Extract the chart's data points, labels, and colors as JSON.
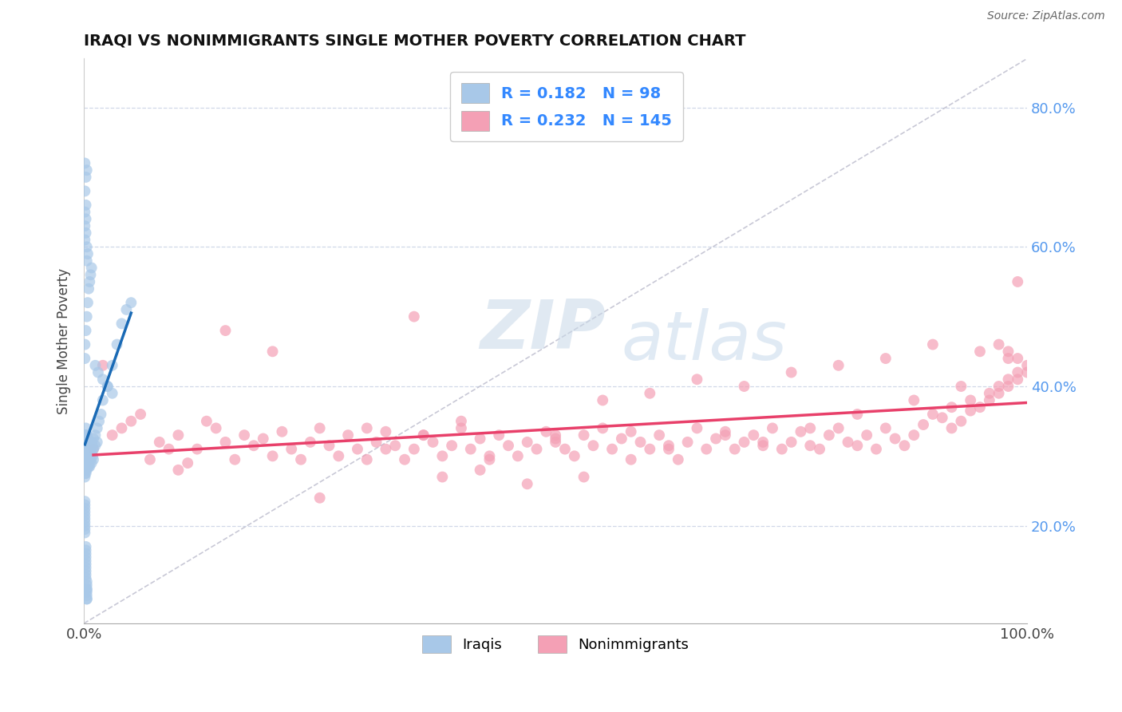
{
  "title": "IRAQI VS NONIMMIGRANTS SINGLE MOTHER POVERTY CORRELATION CHART",
  "source": "Source: ZipAtlas.com",
  "ylabel": "Single Mother Poverty",
  "r_iraqi": 0.182,
  "n_iraqi": 98,
  "r_nonimm": 0.232,
  "n_nonimm": 145,
  "color_iraqi": "#a8c8e8",
  "color_nonimm": "#f4a0b5",
  "color_iraqi_line": "#1a6ab5",
  "color_nonimm_line": "#e8406a",
  "background": "#ffffff",
  "grid_color": "#d0d8e8",
  "xlim": [
    0.0,
    1.0
  ],
  "ylim": [
    0.06,
    0.87
  ],
  "yticks": [
    0.2,
    0.4,
    0.6,
    0.8
  ],
  "ytick_labels": [
    "20.0%",
    "40.0%",
    "60.0%",
    "80.0%"
  ],
  "xticks": [
    0.0,
    1.0
  ],
  "xtick_labels": [
    "0.0%",
    "100.0%"
  ],
  "legend_labels": [
    "Iraqis",
    "Nonimmigrants"
  ],
  "iraqi_x": [
    0.001,
    0.001,
    0.001,
    0.001,
    0.001,
    0.001,
    0.001,
    0.001,
    0.001,
    0.001,
    0.002,
    0.002,
    0.002,
    0.002,
    0.002,
    0.002,
    0.002,
    0.002,
    0.002,
    0.002,
    0.003,
    0.003,
    0.003,
    0.003,
    0.003,
    0.003,
    0.003,
    0.003,
    0.004,
    0.004,
    0.004,
    0.004,
    0.004,
    0.004,
    0.005,
    0.005,
    0.005,
    0.005,
    0.005,
    0.006,
    0.006,
    0.006,
    0.006,
    0.007,
    0.007,
    0.007,
    0.008,
    0.008,
    0.008,
    0.009,
    0.009,
    0.01,
    0.01,
    0.01,
    0.012,
    0.012,
    0.014,
    0.014,
    0.016,
    0.018,
    0.02,
    0.025,
    0.03,
    0.035,
    0.04,
    0.045,
    0.05,
    0.001,
    0.001,
    0.001,
    0.002,
    0.002,
    0.003,
    0.003,
    0.004,
    0.001,
    0.001,
    0.002,
    0.002,
    0.003,
    0.001,
    0.001,
    0.002,
    0.003,
    0.004,
    0.005,
    0.006,
    0.007,
    0.008,
    0.012,
    0.015,
    0.02,
    0.025,
    0.03
  ],
  "iraqi_y": [
    0.285,
    0.3,
    0.31,
    0.32,
    0.295,
    0.275,
    0.33,
    0.27,
    0.315,
    0.305,
    0.29,
    0.31,
    0.33,
    0.32,
    0.3,
    0.285,
    0.295,
    0.315,
    0.275,
    0.34,
    0.295,
    0.32,
    0.31,
    0.3,
    0.33,
    0.28,
    0.315,
    0.29,
    0.3,
    0.31,
    0.325,
    0.285,
    0.295,
    0.315,
    0.295,
    0.31,
    0.3,
    0.285,
    0.32,
    0.305,
    0.295,
    0.315,
    0.285,
    0.31,
    0.3,
    0.295,
    0.32,
    0.305,
    0.29,
    0.315,
    0.3,
    0.31,
    0.325,
    0.295,
    0.33,
    0.315,
    0.34,
    0.32,
    0.35,
    0.36,
    0.38,
    0.4,
    0.43,
    0.46,
    0.49,
    0.51,
    0.52,
    0.61,
    0.63,
    0.65,
    0.62,
    0.64,
    0.58,
    0.6,
    0.59,
    0.68,
    0.72,
    0.66,
    0.7,
    0.71,
    0.44,
    0.46,
    0.48,
    0.5,
    0.52,
    0.54,
    0.55,
    0.56,
    0.57,
    0.43,
    0.42,
    0.41,
    0.4,
    0.39
  ],
  "iraqi_y_low": [
    0.22,
    0.21,
    0.23,
    0.215,
    0.2,
    0.225,
    0.19,
    0.205,
    0.195,
    0.235,
    0.13,
    0.145,
    0.155,
    0.14,
    0.16,
    0.165,
    0.15,
    0.135,
    0.17,
    0.125,
    0.095,
    0.11,
    0.105,
    0.115,
    0.1,
    0.12,
    0.095,
    0.108
  ],
  "nonimm_x": [
    0.01,
    0.02,
    0.03,
    0.04,
    0.05,
    0.06,
    0.07,
    0.08,
    0.09,
    0.1,
    0.11,
    0.12,
    0.13,
    0.14,
    0.15,
    0.16,
    0.17,
    0.18,
    0.19,
    0.2,
    0.21,
    0.22,
    0.23,
    0.24,
    0.25,
    0.26,
    0.27,
    0.28,
    0.29,
    0.3,
    0.31,
    0.32,
    0.33,
    0.34,
    0.35,
    0.36,
    0.37,
    0.38,
    0.39,
    0.4,
    0.41,
    0.42,
    0.43,
    0.44,
    0.45,
    0.46,
    0.47,
    0.48,
    0.49,
    0.5,
    0.51,
    0.52,
    0.53,
    0.54,
    0.55,
    0.56,
    0.57,
    0.58,
    0.59,
    0.6,
    0.61,
    0.62,
    0.63,
    0.64,
    0.65,
    0.66,
    0.67,
    0.68,
    0.69,
    0.7,
    0.71,
    0.72,
    0.73,
    0.74,
    0.75,
    0.76,
    0.77,
    0.78,
    0.79,
    0.8,
    0.81,
    0.82,
    0.83,
    0.84,
    0.85,
    0.86,
    0.87,
    0.88,
    0.89,
    0.9,
    0.91,
    0.92,
    0.93,
    0.94,
    0.95,
    0.96,
    0.97,
    0.98,
    0.99,
    1.0,
    0.55,
    0.6,
    0.65,
    0.7,
    0.75,
    0.8,
    0.85,
    0.9,
    0.95,
    0.98,
    0.92,
    0.94,
    0.96,
    0.97,
    0.98,
    0.99,
    1.0,
    0.99,
    0.98,
    0.97,
    0.4,
    0.35,
    0.38,
    0.15,
    0.25,
    0.47,
    0.53,
    0.42,
    0.3,
    0.2,
    0.1,
    0.32,
    0.36,
    0.43,
    0.5,
    0.58,
    0.62,
    0.68,
    0.72,
    0.77,
    0.82,
    0.88,
    0.93,
    0.99,
    0.5
  ],
  "nonimm_y": [
    0.31,
    0.43,
    0.33,
    0.34,
    0.35,
    0.36,
    0.295,
    0.32,
    0.31,
    0.33,
    0.29,
    0.31,
    0.35,
    0.34,
    0.32,
    0.295,
    0.33,
    0.315,
    0.325,
    0.3,
    0.335,
    0.31,
    0.295,
    0.32,
    0.34,
    0.315,
    0.3,
    0.33,
    0.31,
    0.295,
    0.32,
    0.335,
    0.315,
    0.295,
    0.31,
    0.33,
    0.32,
    0.3,
    0.315,
    0.34,
    0.31,
    0.325,
    0.295,
    0.33,
    0.315,
    0.3,
    0.32,
    0.31,
    0.335,
    0.32,
    0.31,
    0.3,
    0.33,
    0.315,
    0.34,
    0.31,
    0.325,
    0.335,
    0.32,
    0.31,
    0.33,
    0.315,
    0.295,
    0.32,
    0.34,
    0.31,
    0.325,
    0.335,
    0.31,
    0.32,
    0.33,
    0.315,
    0.34,
    0.31,
    0.32,
    0.335,
    0.315,
    0.31,
    0.33,
    0.34,
    0.32,
    0.315,
    0.33,
    0.31,
    0.34,
    0.325,
    0.315,
    0.33,
    0.345,
    0.36,
    0.355,
    0.34,
    0.35,
    0.365,
    0.37,
    0.38,
    0.39,
    0.4,
    0.41,
    0.42,
    0.38,
    0.39,
    0.41,
    0.4,
    0.42,
    0.43,
    0.44,
    0.46,
    0.45,
    0.44,
    0.37,
    0.38,
    0.39,
    0.4,
    0.41,
    0.42,
    0.43,
    0.44,
    0.45,
    0.46,
    0.35,
    0.5,
    0.27,
    0.48,
    0.24,
    0.26,
    0.27,
    0.28,
    0.34,
    0.45,
    0.28,
    0.31,
    0.33,
    0.3,
    0.325,
    0.295,
    0.31,
    0.33,
    0.32,
    0.34,
    0.36,
    0.38,
    0.4,
    0.55,
    0.33
  ]
}
